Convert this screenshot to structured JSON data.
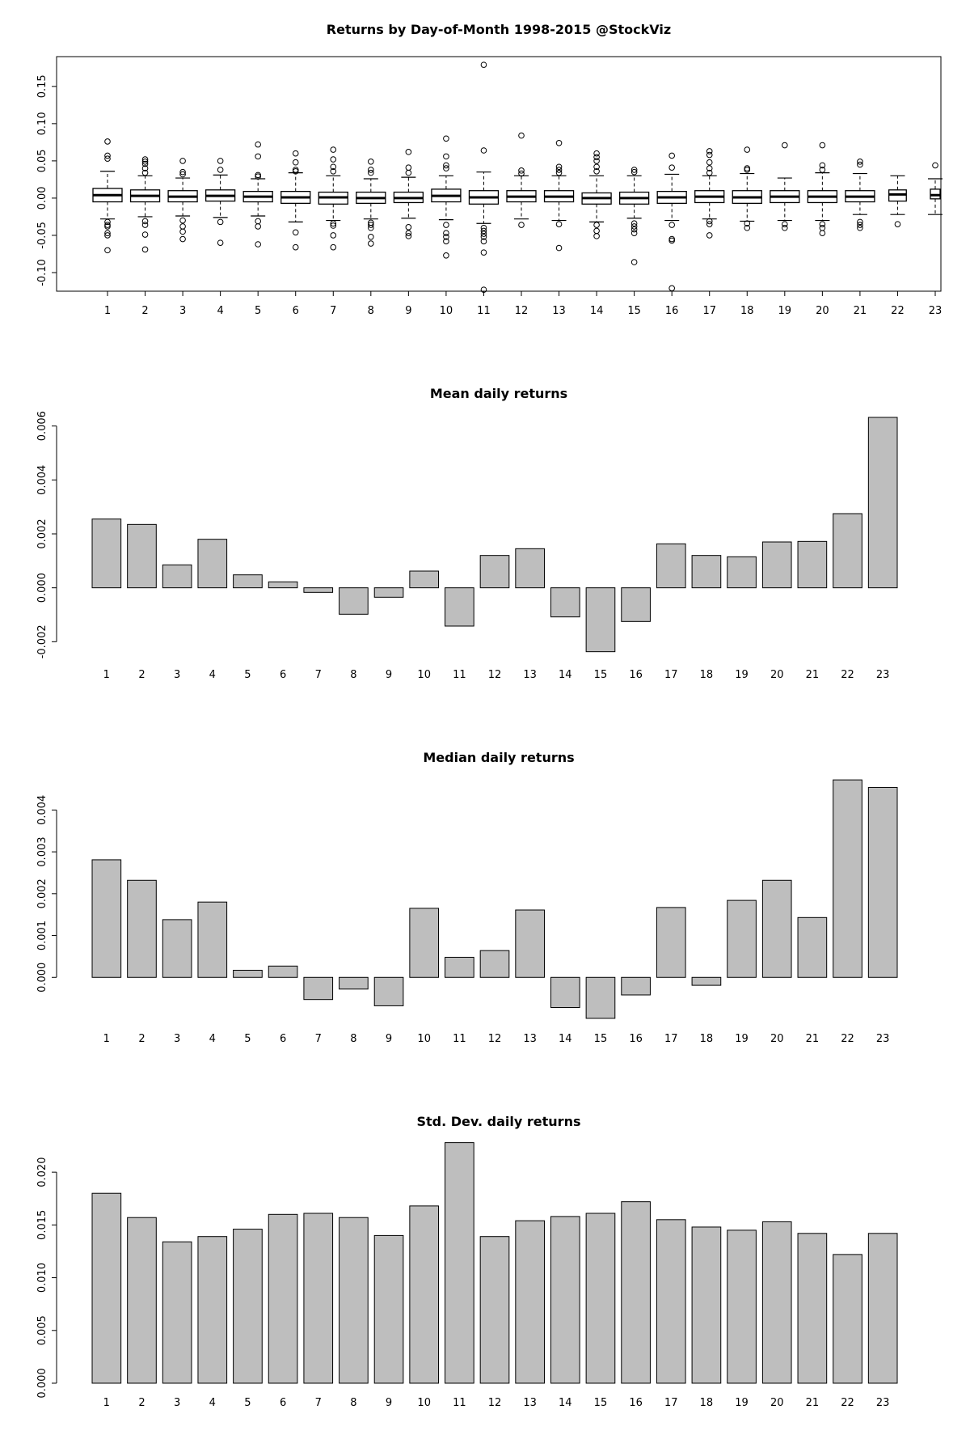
{
  "chart_data": [
    {
      "type": "box",
      "title": "Returns by Day-of-Month 1998-2015 @StockViz",
      "categories": [
        "1",
        "2",
        "3",
        "4",
        "5",
        "6",
        "7",
        "8",
        "9",
        "10",
        "11",
        "12",
        "13",
        "14",
        "15",
        "16",
        "17",
        "18",
        "19",
        "20",
        "21",
        "22",
        "23"
      ],
      "y_ticks": [
        "-0.10",
        "-0.05",
        "0.00",
        "0.05",
        "0.10",
        "0.15"
      ],
      "ylim": [
        -0.125,
        0.19
      ],
      "boxes": [
        {
          "q1": -0.005,
          "median": 0.004,
          "q3": 0.013,
          "whisker_low": -0.028,
          "whisker_high": 0.036,
          "outliers": [
            0.076,
            0.057,
            0.053,
            -0.032,
            -0.036,
            -0.038,
            -0.047,
            -0.05,
            -0.07
          ]
        },
        {
          "q1": -0.005,
          "median": 0.003,
          "q3": 0.011,
          "whisker_low": -0.025,
          "whisker_high": 0.03,
          "outliers": [
            0.052,
            0.049,
            0.046,
            0.04,
            0.034,
            -0.031,
            -0.036,
            -0.049,
            -0.069
          ]
        },
        {
          "q1": -0.005,
          "median": 0.002,
          "q3": 0.01,
          "whisker_low": -0.024,
          "whisker_high": 0.027,
          "outliers": [
            0.05,
            0.035,
            0.032,
            -0.03,
            -0.038,
            -0.045,
            -0.055
          ]
        },
        {
          "q1": -0.004,
          "median": 0.003,
          "q3": 0.011,
          "whisker_low": -0.026,
          "whisker_high": 0.031,
          "outliers": [
            0.05,
            0.038,
            -0.032,
            -0.06
          ]
        },
        {
          "q1": -0.005,
          "median": 0.002,
          "q3": 0.009,
          "whisker_low": -0.024,
          "whisker_high": 0.026,
          "outliers": [
            0.072,
            0.056,
            0.031,
            0.029,
            -0.031,
            -0.038,
            -0.062
          ]
        },
        {
          "q1": -0.007,
          "median": 0.001,
          "q3": 0.009,
          "whisker_low": -0.032,
          "whisker_high": 0.034,
          "outliers": [
            0.06,
            0.048,
            0.038,
            0.036,
            -0.046,
            -0.066
          ]
        },
        {
          "q1": -0.008,
          "median": 0.001,
          "q3": 0.008,
          "whisker_low": -0.03,
          "whisker_high": 0.03,
          "outliers": [
            0.065,
            0.052,
            0.042,
            0.036,
            -0.034,
            -0.037,
            -0.05,
            -0.066
          ]
        },
        {
          "q1": -0.007,
          "median": 0.0,
          "q3": 0.008,
          "whisker_low": -0.028,
          "whisker_high": 0.026,
          "outliers": [
            0.049,
            0.038,
            0.034,
            -0.033,
            -0.036,
            -0.04,
            -0.052,
            -0.061
          ]
        },
        {
          "q1": -0.006,
          "median": 0.0,
          "q3": 0.008,
          "whisker_low": -0.027,
          "whisker_high": 0.028,
          "outliers": [
            0.062,
            0.041,
            0.034,
            -0.039,
            -0.047,
            -0.051
          ]
        },
        {
          "q1": -0.005,
          "median": 0.003,
          "q3": 0.012,
          "whisker_low": -0.029,
          "whisker_high": 0.03,
          "outliers": [
            0.08,
            0.056,
            0.044,
            0.04,
            -0.036,
            -0.047,
            -0.052,
            -0.058,
            -0.077
          ]
        },
        {
          "q1": -0.008,
          "median": 0.001,
          "q3": 0.01,
          "whisker_low": -0.034,
          "whisker_high": 0.035,
          "outliers": [
            0.179,
            0.064,
            -0.04,
            -0.044,
            -0.048,
            -0.052,
            -0.058,
            -0.073,
            -0.123
          ]
        },
        {
          "q1": -0.005,
          "median": 0.002,
          "q3": 0.01,
          "whisker_low": -0.028,
          "whisker_high": 0.03,
          "outliers": [
            0.084,
            0.037,
            0.033,
            -0.036
          ]
        },
        {
          "q1": -0.005,
          "median": 0.002,
          "q3": 0.01,
          "whisker_low": -0.03,
          "whisker_high": 0.03,
          "outliers": [
            0.074,
            0.042,
            0.038,
            0.034,
            -0.035,
            -0.067
          ]
        },
        {
          "q1": -0.008,
          "median": 0.0,
          "q3": 0.007,
          "whisker_low": -0.032,
          "whisker_high": 0.03,
          "outliers": [
            0.06,
            0.055,
            0.05,
            0.042,
            0.036,
            -0.036,
            -0.044,
            -0.051
          ]
        },
        {
          "q1": -0.008,
          "median": 0.0,
          "q3": 0.008,
          "whisker_low": -0.027,
          "whisker_high": 0.03,
          "outliers": [
            0.038,
            0.035,
            -0.034,
            -0.038,
            -0.042,
            -0.047,
            -0.086
          ]
        },
        {
          "q1": -0.007,
          "median": 0.001,
          "q3": 0.009,
          "whisker_low": -0.03,
          "whisker_high": 0.032,
          "outliers": [
            0.057,
            0.041,
            -0.036,
            -0.055,
            -0.057,
            -0.121
          ]
        },
        {
          "q1": -0.006,
          "median": 0.002,
          "q3": 0.01,
          "whisker_low": -0.028,
          "whisker_high": 0.03,
          "outliers": [
            0.063,
            0.058,
            0.048,
            0.04,
            0.034,
            -0.031,
            -0.035,
            -0.05
          ]
        },
        {
          "q1": -0.007,
          "median": 0.001,
          "q3": 0.01,
          "whisker_low": -0.031,
          "whisker_high": 0.033,
          "outliers": [
            0.065,
            0.04,
            0.038,
            -0.034,
            -0.04
          ]
        },
        {
          "q1": -0.006,
          "median": 0.002,
          "q3": 0.01,
          "whisker_low": -0.03,
          "whisker_high": 0.027,
          "outliers": [
            0.071,
            -0.035,
            -0.04
          ]
        },
        {
          "q1": -0.006,
          "median": 0.002,
          "q3": 0.01,
          "whisker_low": -0.03,
          "whisker_high": 0.034,
          "outliers": [
            0.071,
            0.044,
            0.038,
            -0.035,
            -0.04,
            -0.047
          ]
        },
        {
          "q1": -0.005,
          "median": 0.002,
          "q3": 0.01,
          "whisker_low": -0.022,
          "whisker_high": 0.033,
          "outliers": [
            0.049,
            0.045,
            -0.032,
            -0.036,
            -0.04
          ]
        },
        {
          "q1": -0.004,
          "median": 0.005,
          "q3": 0.011,
          "whisker_low": -0.022,
          "whisker_high": 0.03,
          "outliers": [
            -0.035
          ]
        },
        {
          "q1": -0.001,
          "median": 0.004,
          "q3": 0.012,
          "whisker_low": -0.022,
          "whisker_high": 0.026,
          "outliers": [
            0.044
          ]
        }
      ]
    },
    {
      "type": "bar",
      "title": "Mean daily returns",
      "categories": [
        "1",
        "2",
        "3",
        "4",
        "5",
        "6",
        "7",
        "8",
        "9",
        "10",
        "11",
        "12",
        "13",
        "14",
        "15",
        "16",
        "17",
        "18",
        "19",
        "20",
        "21",
        "22",
        "23"
      ],
      "values": [
        0.00255,
        0.00235,
        0.00085,
        0.0018,
        0.00048,
        0.00022,
        -0.00017,
        -0.00098,
        -0.00035,
        0.00062,
        -0.00142,
        0.0012,
        0.00145,
        -0.00108,
        -0.00237,
        -0.00125,
        0.00163,
        0.0012,
        0.00115,
        0.0017,
        0.00172,
        0.00275,
        0.00632
      ],
      "y_ticks": [
        "-0.002",
        "0.000",
        "0.002",
        "0.004",
        "0.006"
      ],
      "ylim": [
        -0.0025,
        0.0065
      ]
    },
    {
      "type": "bar",
      "title": "Median daily returns",
      "categories": [
        "1",
        "2",
        "3",
        "4",
        "5",
        "6",
        "7",
        "8",
        "9",
        "10",
        "11",
        "12",
        "13",
        "14",
        "15",
        "16",
        "17",
        "18",
        "19",
        "20",
        "21",
        "22",
        "23"
      ],
      "values": [
        0.00281,
        0.00232,
        0.00138,
        0.0018,
        0.00017,
        0.00027,
        -0.00053,
        -0.00028,
        -0.00068,
        0.00165,
        0.00048,
        0.00064,
        0.00161,
        -0.00072,
        -0.00098,
        -0.00042,
        0.00167,
        -0.00019,
        0.00184,
        0.00232,
        0.00143,
        0.00472,
        0.00454
      ],
      "y_ticks": [
        "0.000",
        "0.001",
        "0.002",
        "0.003",
        "0.004"
      ],
      "ylim": [
        -0.001,
        0.0048
      ]
    },
    {
      "type": "bar",
      "title": "Std. Dev. daily returns",
      "categories": [
        "1",
        "2",
        "3",
        "4",
        "5",
        "6",
        "7",
        "8",
        "9",
        "10",
        "11",
        "12",
        "13",
        "14",
        "15",
        "16",
        "17",
        "18",
        "19",
        "20",
        "21",
        "22",
        "23"
      ],
      "values": [
        0.018,
        0.0157,
        0.0134,
        0.0139,
        0.0146,
        0.016,
        0.0161,
        0.0157,
        0.014,
        0.0168,
        0.0228,
        0.0139,
        0.0154,
        0.0158,
        0.0161,
        0.0172,
        0.0155,
        0.0148,
        0.0145,
        0.0153,
        0.0142,
        0.0122,
        0.0142
      ],
      "y_ticks": [
        "0.000",
        "0.005",
        "0.010",
        "0.015",
        "0.020"
      ],
      "ylim": [
        0,
        0.023
      ]
    }
  ]
}
